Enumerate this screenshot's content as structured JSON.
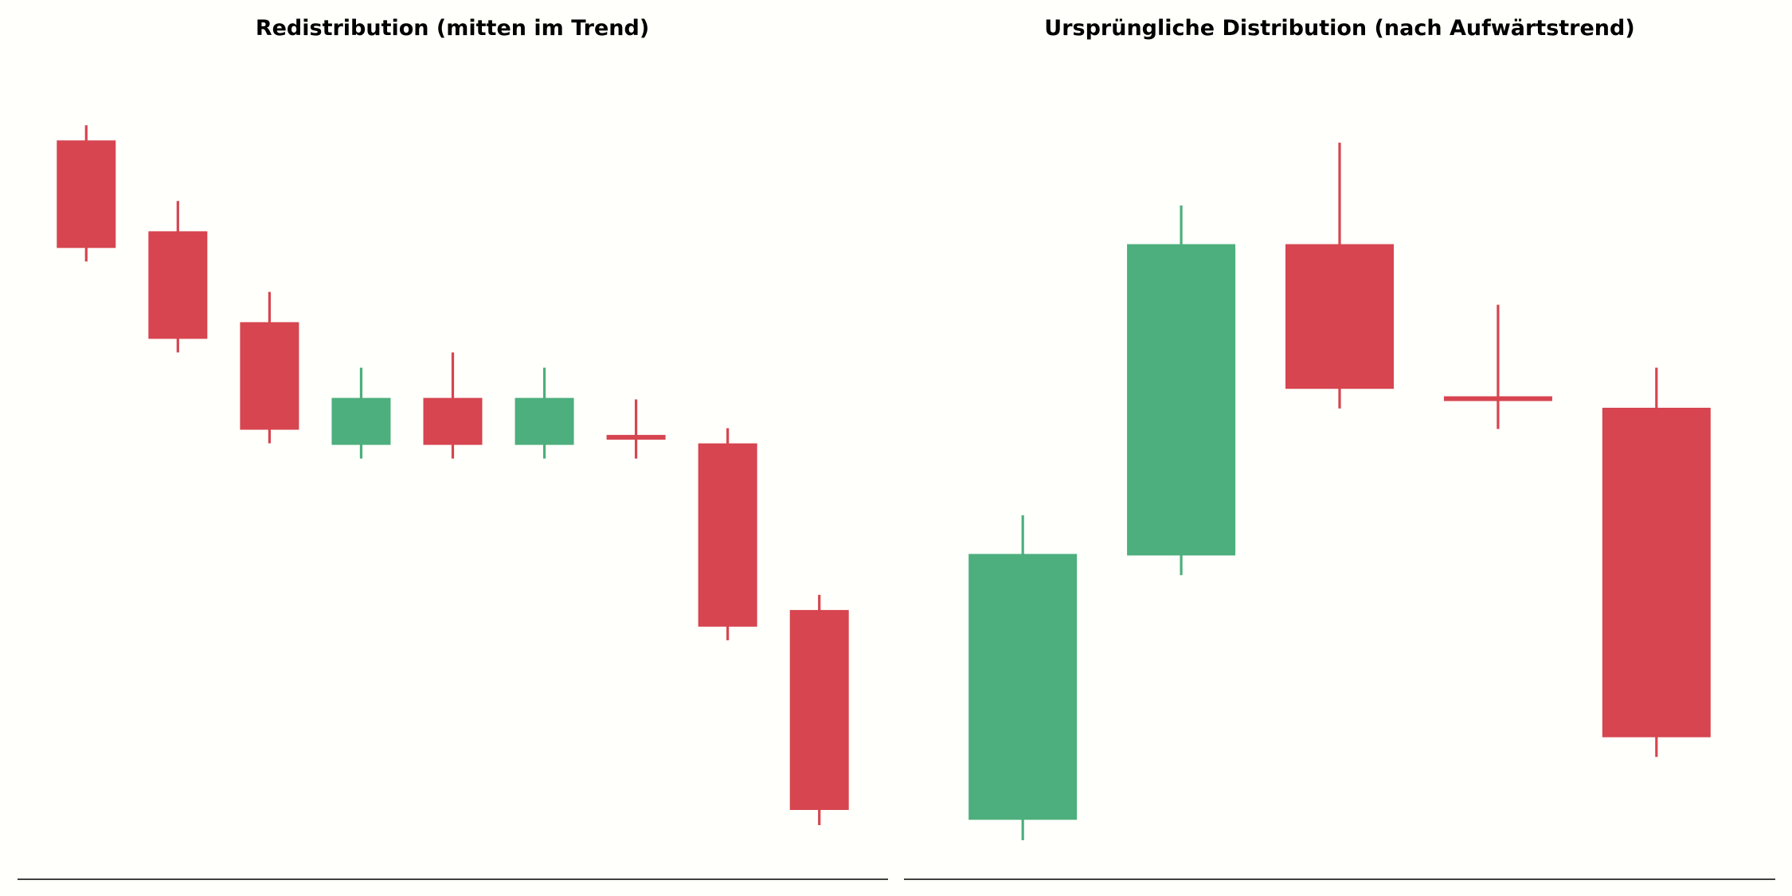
{
  "chart_data": [
    {
      "type": "candlestick",
      "title": "Redistribution (mitten im Trend)",
      "xlabel": "",
      "ylabel": "",
      "grid": false,
      "ylim": [
        0,
        100
      ],
      "candles": [
        {
          "open": 92.4,
          "high": 94.4,
          "low": 76.4,
          "close": 78.2,
          "direction": "down"
        },
        {
          "open": 80.4,
          "high": 84.4,
          "low": 64.4,
          "close": 66.2,
          "direction": "down"
        },
        {
          "open": 68.4,
          "high": 72.4,
          "low": 52.4,
          "close": 54.2,
          "direction": "down"
        },
        {
          "open": 52.2,
          "high": 62.4,
          "low": 50.4,
          "close": 58.4,
          "direction": "up"
        },
        {
          "open": 58.4,
          "high": 64.4,
          "low": 50.4,
          "close": 52.2,
          "direction": "down"
        },
        {
          "open": 52.2,
          "high": 62.4,
          "low": 50.4,
          "close": 58.4,
          "direction": "up"
        },
        {
          "open": 53.4,
          "high": 58.2,
          "low": 50.4,
          "close": 53.0,
          "direction": "down"
        },
        {
          "open": 52.4,
          "high": 54.4,
          "low": 26.4,
          "close": 28.2,
          "direction": "down"
        },
        {
          "open": 30.4,
          "high": 32.4,
          "low": 2.0,
          "close": 4.0,
          "direction": "down"
        }
      ],
      "colors": {
        "up": "#4caf7d",
        "down": "#d64550"
      }
    },
    {
      "type": "candlestick",
      "title": "Ursprüngliche Distribution (nach Aufwärtstrend)",
      "xlabel": "",
      "ylabel": "",
      "grid": false,
      "ylim": [
        0,
        100
      ],
      "candles": [
        {
          "open": 2.7,
          "high": 42.9,
          "low": 0.0,
          "close": 37.8,
          "direction": "up"
        },
        {
          "open": 37.6,
          "high": 83.8,
          "low": 35.0,
          "close": 78.7,
          "direction": "up"
        },
        {
          "open": 78.7,
          "high": 92.1,
          "low": 57.0,
          "close": 59.6,
          "direction": "down"
        },
        {
          "open": 58.4,
          "high": 70.7,
          "low": 54.3,
          "close": 58.2,
          "direction": "down"
        },
        {
          "open": 57.1,
          "high": 62.4,
          "low": 11.0,
          "close": 13.6,
          "direction": "down"
        }
      ],
      "colors": {
        "up": "#4caf7d",
        "down": "#d64550"
      }
    }
  ]
}
